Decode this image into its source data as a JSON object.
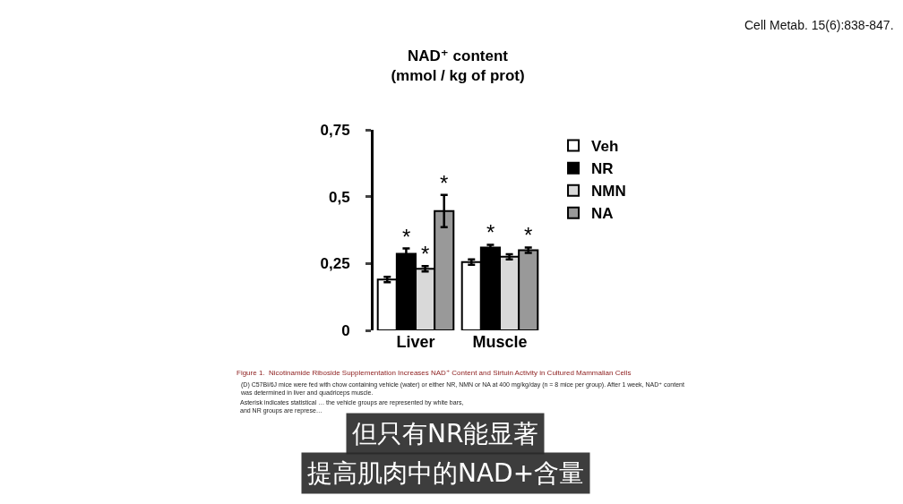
{
  "chart_data": {
    "type": "bar",
    "title": "NAD⁺ content",
    "subtitle": "(mmol / kg of prot)",
    "categories": [
      "Liver",
      "Muscle"
    ],
    "series": [
      {
        "name": "Veh",
        "color": "#ffffff",
        "values": [
          0.19,
          0.255
        ],
        "errors": [
          0.01,
          0.01
        ]
      },
      {
        "name": "NR",
        "color": "#000000",
        "values": [
          0.286,
          0.31
        ],
        "errors": [
          0.02,
          0.01
        ],
        "value_labels": [
          "*",
          "*"
        ]
      },
      {
        "name": "NMN",
        "color": "#d9d9d9",
        "values": [
          0.23,
          0.275
        ],
        "errors": [
          0.01,
          0.01
        ],
        "value_labels": [
          "*",
          null
        ]
      },
      {
        "name": "NA",
        "color": "#999999",
        "values": [
          0.446,
          0.3
        ],
        "errors": [
          0.06,
          0.01
        ],
        "value_labels": [
          "*",
          "*"
        ]
      }
    ],
    "ylim": [
      0,
      0.75
    ],
    "yticks": [
      0,
      {
        "value": 0.25,
        "label": "0,25"
      },
      {
        "value": 0.5,
        "label": "0,5"
      },
      {
        "value": 0.75,
        "label": "0,75"
      }
    ],
    "grid": false,
    "legend": "top right",
    "annotations": [
      "Cell Metab. 15(6):838-847.",
      "Figure 1.  Nicotinamide Riboside Supplementation Increases NAD⁺ Content and Sirtuin Activity in Cultured Mammalian Cells",
      "(D) C57Bl/6J mice were fed with chow containing vehicle (water) or either NR, NMN or NA at 400 mg/kg/day (n = 8 mice per group). After 1 week, NAD⁺ content was determined in liver and quadriceps muscle.",
      "Asterisk indicates statistical … the vehicle groups are represented by white bars, and NR groups are represe…",
      "但只有NR能显著",
      "提高肌肉中的NAD+含量"
    ]
  }
}
